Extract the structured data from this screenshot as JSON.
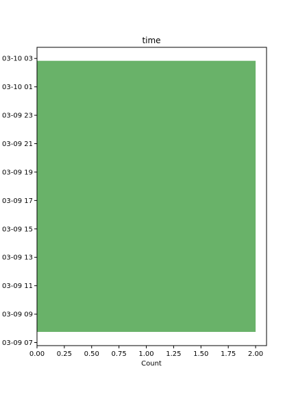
{
  "chart_data": {
    "type": "bar",
    "orientation": "horizontal",
    "title": "time",
    "xlabel": "Count",
    "ylabel": "",
    "xlim": [
      0.0,
      2.1
    ],
    "ylim": [
      "03-09 06:47",
      "03-10 03:47"
    ],
    "xticks": [
      "0.00",
      "0.25",
      "0.50",
      "0.75",
      "1.00",
      "1.25",
      "1.50",
      "1.75",
      "2.00"
    ],
    "yticks": [
      "03-09 07",
      "03-09 09",
      "03-09 11",
      "03-09 13",
      "03-09 15",
      "03-09 17",
      "03-09 19",
      "03-09 21",
      "03-09 23",
      "03-10 01",
      "03-10 03"
    ],
    "bars": [
      {
        "y_start": "03-09 07:45",
        "y_end": "03-10 02:50",
        "value": 2
      }
    ],
    "bar_color": "#69b269",
    "grid": false
  }
}
